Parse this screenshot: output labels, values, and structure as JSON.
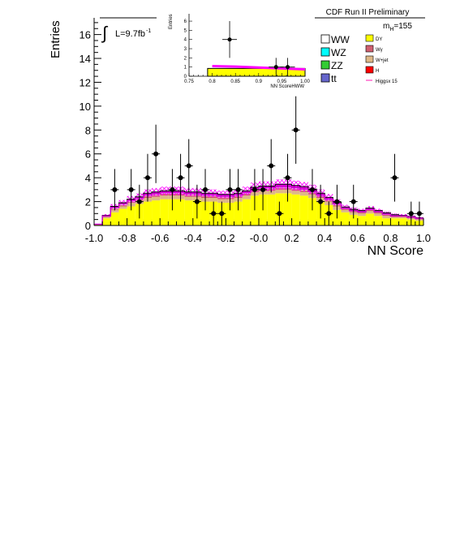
{
  "chart_data": [
    {
      "type": "bar",
      "title": "CDF Run II Preliminary",
      "xlabel": "NN Score",
      "ylabel": "Entries",
      "xlim": [
        -1.0,
        1.0
      ],
      "ylim": [
        0,
        17.4
      ],
      "xticks": [
        "-1.0",
        "-0.8",
        "-0.6",
        "-0.4",
        "-0.2",
        "-0.0",
        "0.2",
        "0.4",
        "0.6",
        "0.8",
        "1.0"
      ],
      "yticks": [
        "0",
        "2",
        "4",
        "6",
        "8",
        "10",
        "12",
        "14",
        "16"
      ],
      "lumi_label": "L=9.7fb",
      "lumi_exponent": "-1",
      "mass_label": "m",
      "mass_subscript": "H",
      "mass_value": "=155",
      "bin_edges": [
        -1.0,
        -0.95,
        -0.9,
        -0.85,
        -0.8,
        -0.75,
        -0.7,
        -0.65,
        -0.6,
        -0.55,
        -0.5,
        -0.45,
        -0.4,
        -0.35,
        -0.3,
        -0.25,
        -0.2,
        -0.15,
        -0.1,
        -0.05,
        0.0,
        0.05,
        0.1,
        0.15,
        0.2,
        0.25,
        0.3,
        0.35,
        0.4,
        0.45,
        0.5,
        0.55,
        0.6,
        0.65,
        0.7,
        0.75,
        0.8,
        0.85,
        0.9,
        0.95,
        1.0
      ],
      "series": [
        {
          "name": "DY",
          "color": "#ffff00",
          "values": [
            0.1,
            0.6,
            1.1,
            1.4,
            1.6,
            1.8,
            2.0,
            2.1,
            2.2,
            2.2,
            2.2,
            2.1,
            2.1,
            2.0,
            2.0,
            1.9,
            1.9,
            2.0,
            2.2,
            2.5,
            2.6,
            2.6,
            2.7,
            2.7,
            2.6,
            2.5,
            2.3,
            2.0,
            1.7,
            1.3,
            1.1,
            0.9,
            0.8,
            1.0,
            0.8,
            0.6,
            0.6,
            0.6,
            0.5,
            0.4
          ]
        },
        {
          "name": "W+jet",
          "color": "#deb887",
          "values": [
            0.0,
            0.1,
            0.2,
            0.2,
            0.3,
            0.3,
            0.3,
            0.3,
            0.3,
            0.3,
            0.3,
            0.3,
            0.3,
            0.3,
            0.3,
            0.3,
            0.3,
            0.3,
            0.3,
            0.3,
            0.3,
            0.3,
            0.3,
            0.3,
            0.3,
            0.3,
            0.3,
            0.3,
            0.3,
            0.3,
            0.2,
            0.2,
            0.2,
            0.2,
            0.2,
            0.2,
            0.1,
            0.1,
            0.1,
            0.1
          ]
        },
        {
          "name": "Wγ",
          "color": "#d06070",
          "values": [
            0.0,
            0.05,
            0.1,
            0.1,
            0.1,
            0.1,
            0.15,
            0.15,
            0.15,
            0.15,
            0.15,
            0.15,
            0.15,
            0.15,
            0.15,
            0.15,
            0.15,
            0.15,
            0.15,
            0.15,
            0.15,
            0.15,
            0.15,
            0.15,
            0.15,
            0.15,
            0.15,
            0.15,
            0.1,
            0.1,
            0.1,
            0.1,
            0.1,
            0.1,
            0.1,
            0.1,
            0.05,
            0.05,
            0.05,
            0.05
          ]
        },
        {
          "name": "WW",
          "color": "#ffffff",
          "values": [
            0.0,
            0.05,
            0.1,
            0.1,
            0.1,
            0.1,
            0.1,
            0.1,
            0.1,
            0.1,
            0.1,
            0.1,
            0.1,
            0.1,
            0.1,
            0.1,
            0.1,
            0.1,
            0.1,
            0.1,
            0.1,
            0.1,
            0.1,
            0.1,
            0.1,
            0.1,
            0.1,
            0.1,
            0.1,
            0.1,
            0.05,
            0.05,
            0.05,
            0.05,
            0.05,
            0.05,
            0.05,
            0.05,
            0.05,
            0.05
          ]
        },
        {
          "name": "Higgsx 15",
          "color": "#cc00cc",
          "values": [
            0.0,
            0.05,
            0.1,
            0.1,
            0.1,
            0.1,
            0.15,
            0.15,
            0.15,
            0.15,
            0.15,
            0.15,
            0.15,
            0.15,
            0.15,
            0.15,
            0.15,
            0.15,
            0.15,
            0.15,
            0.15,
            0.15,
            0.2,
            0.2,
            0.2,
            0.2,
            0.2,
            0.15,
            0.15,
            0.15,
            0.1,
            0.1,
            0.1,
            0.1,
            0.1,
            0.1,
            0.1,
            0.05,
            0.05,
            0.05
          ]
        }
      ],
      "uncertainty_band": {
        "color": "#ff00ff",
        "relative": 0.12
      },
      "data_points": {
        "x": [
          -0.875,
          -0.775,
          -0.725,
          -0.675,
          -0.625,
          -0.525,
          -0.475,
          -0.425,
          -0.375,
          -0.325,
          -0.275,
          -0.225,
          -0.175,
          -0.125,
          -0.025,
          0.025,
          0.075,
          0.125,
          0.175,
          0.225,
          0.325,
          0.375,
          0.425,
          0.475,
          0.575,
          0.825,
          0.925,
          0.975
        ],
        "y": [
          3,
          3,
          2,
          4,
          6,
          3,
          4,
          5,
          2,
          3,
          1,
          1,
          3,
          3,
          3,
          3,
          5,
          1,
          4,
          8,
          3,
          2,
          1,
          2,
          2,
          4,
          1,
          1
        ]
      },
      "legend": [
        {
          "label": "WW",
          "color": "#ffffff"
        },
        {
          "label": "WZ",
          "color": "#00ffff"
        },
        {
          "label": "ZZ",
          "color": "#33cc33"
        },
        {
          "label": "tt",
          "color": "#6666cc"
        },
        {
          "label": "DY",
          "color": "#ffff00"
        },
        {
          "label": "Wγ",
          "color": "#d06070"
        },
        {
          "label": "W+jet",
          "color": "#deb887"
        },
        {
          "label": "H",
          "color": "#ff0000"
        },
        {
          "label": "Higgsx 15",
          "color": "#ff66cc"
        }
      ],
      "legend_position": "top-right"
    },
    {
      "type": "bar",
      "title": "",
      "xlabel": "NN ScoreHWW",
      "ylabel": "Entries",
      "xlim": [
        0.75,
        1.0
      ],
      "ylim": [
        0,
        6.8
      ],
      "xticks": [
        "0.75",
        "0.8",
        "0.85",
        "0.9",
        "0.95",
        "1.00"
      ],
      "yticks": [
        "0",
        "1",
        "2",
        "3",
        "4",
        "5",
        "6"
      ],
      "stack_top": {
        "x_from": 0.79,
        "x_to": 1.0,
        "values_start": 0.85,
        "values_end": 0.55
      },
      "signal_line": {
        "x": [
          0.8,
          0.85,
          0.9,
          0.95,
          1.0
        ],
        "y": [
          1.1,
          1.05,
          0.95,
          0.85,
          0.75
        ]
      },
      "data_points": {
        "x": [
          0.8375,
          0.9375,
          0.9625
        ],
        "y": [
          4,
          1,
          1
        ]
      }
    }
  ]
}
